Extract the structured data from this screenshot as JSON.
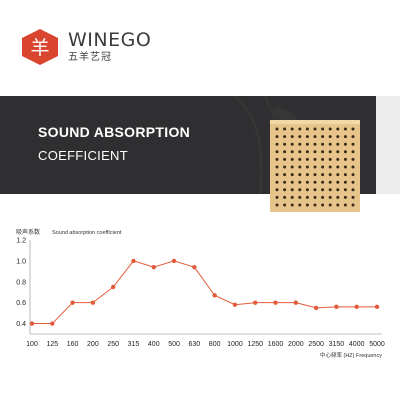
{
  "brand": {
    "name": "WINEGO",
    "subtitle": "五羊艺冠",
    "logo_glyph": "羊",
    "logo_color": "#d9452f"
  },
  "banner": {
    "title": "SOUND ABSORPTION",
    "subtitle": "COEFFICIENT"
  },
  "colors": {
    "line": "#e25b3a",
    "banner_bg": "#2f2f31",
    "panel": "#e7c48a",
    "panel_hole": "#3a2a1a"
  },
  "chart_data": {
    "type": "line",
    "title": "Sound absorption coefficient",
    "ylabel": "吸声系数",
    "xlabel": "中心频率 (HZ) Frequency",
    "categories": [
      "100",
      "125",
      "160",
      "200",
      "250",
      "315",
      "400",
      "500",
      "630",
      "800",
      "1000",
      "1250",
      "1600",
      "2000",
      "2500",
      "3150",
      "4000",
      "5000"
    ],
    "values": [
      0.4,
      0.4,
      0.6,
      0.6,
      0.75,
      1.0,
      0.94,
      1.0,
      0.94,
      0.67,
      0.58,
      0.6,
      0.6,
      0.6,
      0.55,
      0.56,
      0.56,
      0.56
    ],
    "yticks": [
      "0.4",
      "0.6",
      "0.8",
      "1.0",
      "1.2"
    ],
    "ylim": [
      0.3,
      1.2
    ],
    "grid": false
  }
}
